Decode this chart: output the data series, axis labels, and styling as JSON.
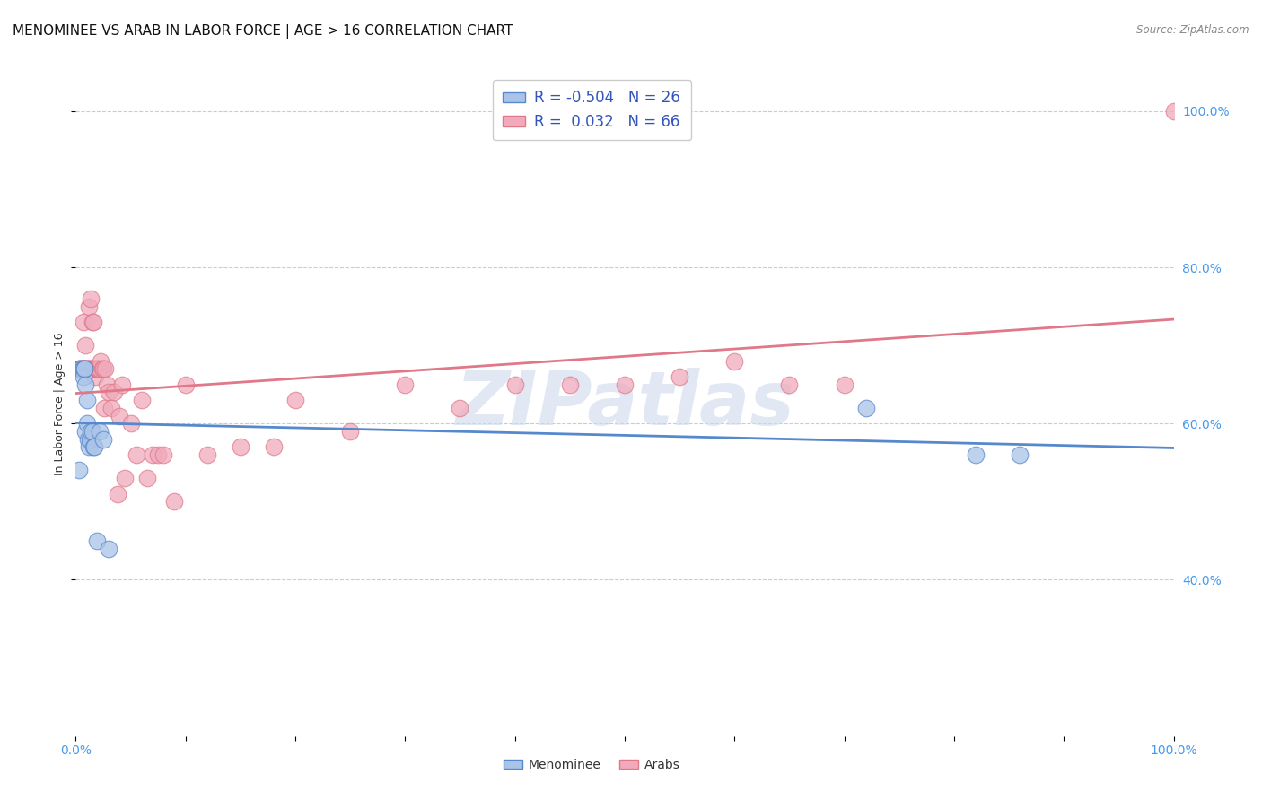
{
  "title": "MENOMINEE VS ARAB IN LABOR FORCE | AGE > 16 CORRELATION CHART",
  "source": "Source: ZipAtlas.com",
  "ylabel": "In Labor Force | Age > 16",
  "watermark": "ZIPatlas",
  "menominee_R": -0.504,
  "menominee_N": 26,
  "arab_R": 0.032,
  "arab_N": 66,
  "menominee_color": "#aac4e8",
  "arab_color": "#f0aabb",
  "menominee_line_color": "#5588cc",
  "arab_line_color": "#e07888",
  "legend_label_1": "Menominee",
  "legend_label_2": "Arabs",
  "xlim": [
    0,
    1
  ],
  "ylim": [
    0.2,
    1.05
  ],
  "y_ticks": [
    0.4,
    0.6,
    0.8,
    1.0
  ],
  "x_ticks": [
    0.0,
    0.5,
    1.0
  ],
  "menominee_x": [
    0.003,
    0.004,
    0.005,
    0.006,
    0.007,
    0.007,
    0.008,
    0.008,
    0.009,
    0.009,
    0.01,
    0.01,
    0.011,
    0.012,
    0.013,
    0.014,
    0.015,
    0.016,
    0.017,
    0.019,
    0.022,
    0.025,
    0.03,
    0.72,
    0.82,
    0.86
  ],
  "menominee_y": [
    0.54,
    0.67,
    0.67,
    0.67,
    0.67,
    0.66,
    0.67,
    0.67,
    0.65,
    0.59,
    0.63,
    0.6,
    0.58,
    0.57,
    0.58,
    0.59,
    0.59,
    0.57,
    0.57,
    0.45,
    0.59,
    0.58,
    0.44,
    0.62,
    0.56,
    0.56
  ],
  "arab_x": [
    0.003,
    0.004,
    0.005,
    0.006,
    0.007,
    0.007,
    0.008,
    0.009,
    0.009,
    0.01,
    0.01,
    0.01,
    0.011,
    0.012,
    0.012,
    0.013,
    0.014,
    0.014,
    0.015,
    0.015,
    0.016,
    0.016,
    0.017,
    0.018,
    0.018,
    0.019,
    0.02,
    0.021,
    0.022,
    0.023,
    0.024,
    0.025,
    0.026,
    0.027,
    0.028,
    0.03,
    0.032,
    0.035,
    0.038,
    0.04,
    0.042,
    0.045,
    0.05,
    0.055,
    0.06,
    0.065,
    0.07,
    0.075,
    0.08,
    0.09,
    0.1,
    0.12,
    0.15,
    0.18,
    0.2,
    0.25,
    0.3,
    0.35,
    0.4,
    0.45,
    0.5,
    0.55,
    0.6,
    0.65,
    0.7,
    1.0
  ],
  "arab_y": [
    0.67,
    0.67,
    0.67,
    0.67,
    0.73,
    0.67,
    0.67,
    0.67,
    0.7,
    0.67,
    0.67,
    0.67,
    0.67,
    0.75,
    0.67,
    0.67,
    0.67,
    0.76,
    0.67,
    0.73,
    0.67,
    0.73,
    0.67,
    0.66,
    0.67,
    0.67,
    0.67,
    0.67,
    0.67,
    0.68,
    0.67,
    0.67,
    0.62,
    0.67,
    0.65,
    0.64,
    0.62,
    0.64,
    0.51,
    0.61,
    0.65,
    0.53,
    0.6,
    0.56,
    0.63,
    0.53,
    0.56,
    0.56,
    0.56,
    0.5,
    0.65,
    0.56,
    0.57,
    0.57,
    0.63,
    0.59,
    0.65,
    0.62,
    0.65,
    0.65,
    0.65,
    0.66,
    0.68,
    0.65,
    0.65,
    1.0
  ],
  "background_color": "#ffffff",
  "grid_color": "#cccccc",
  "title_fontsize": 11,
  "tick_label_color": "#4499ee",
  "watermark_color": "#cddaee",
  "watermark_alpha": 0.6,
  "watermark_fontsize": 60
}
